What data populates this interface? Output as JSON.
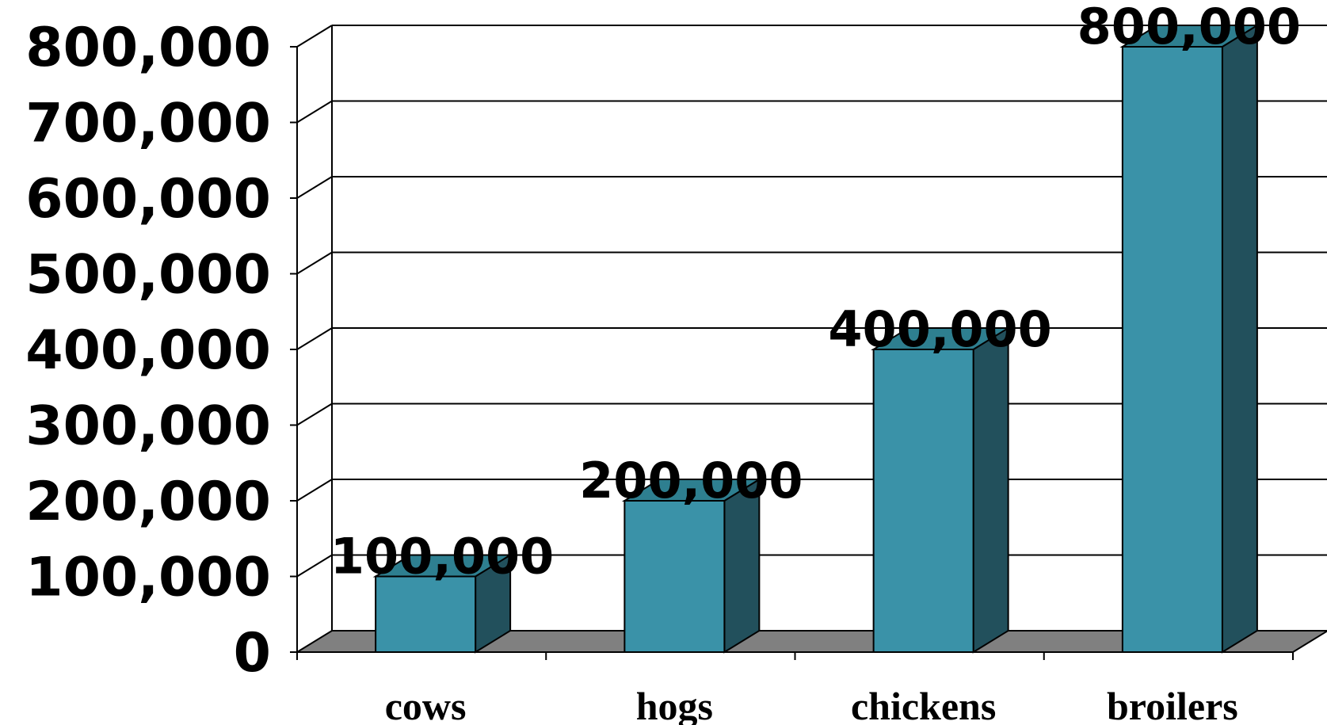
{
  "chart_data": {
    "type": "bar",
    "title": "",
    "xlabel": "",
    "ylabel": "",
    "categories": [
      "cows",
      "hogs",
      "chickens",
      "broilers"
    ],
    "series": [
      {
        "values": [
          100000,
          200000,
          400000,
          800000
        ]
      }
    ],
    "data_labels": [
      "100,000",
      "200,000",
      "400,000",
      "800,000"
    ],
    "y_tick_labels": [
      "0",
      "100,000",
      "200,000",
      "300,000",
      "400,000",
      "500,000",
      "600,000",
      "700,000",
      "800,000"
    ],
    "ylim": [
      0,
      800000
    ],
    "y_step": 100000,
    "grid": true,
    "style": "3d-column",
    "colors": {
      "bar_front": "#3A92A8",
      "bar_side": "#22505C",
      "bar_top": "#2E7F90",
      "floor": "#808080",
      "grid": "#000000"
    }
  }
}
